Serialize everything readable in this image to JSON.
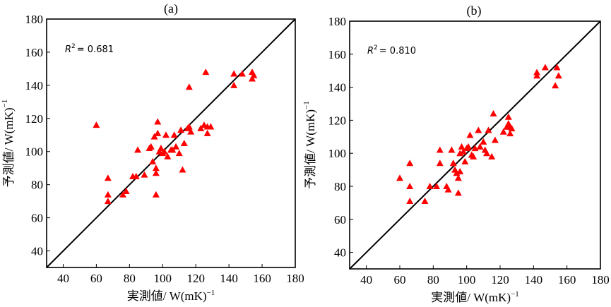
{
  "figure": {
    "y_title_prefix": "予測値/ W(mK)",
    "x_title_prefix": "実測値/ W(mK)",
    "unit_exponent": "−1"
  },
  "chart_data": [
    {
      "type": "scatter",
      "panel_label": "(a)",
      "xlabel": "実測値/ W(mK)−1",
      "ylabel": "予測値/ W(mK)−1",
      "xlim": [
        30,
        180
      ],
      "ylim": [
        30,
        180
      ],
      "xticks": [
        40,
        60,
        80,
        100,
        120,
        140,
        160,
        180
      ],
      "yticks": [
        40,
        60,
        80,
        100,
        120,
        140,
        160,
        180
      ],
      "reference_line": "y = x",
      "annotation": {
        "r2_label": "R",
        "r2_sup": "2",
        "r2_value": "= 0.681"
      },
      "marker": {
        "shape": "triangle",
        "color": "#ff0000"
      },
      "grid": false,
      "points": [
        [
          60,
          116
        ],
        [
          67,
          84
        ],
        [
          67,
          74
        ],
        [
          67,
          70
        ],
        [
          76,
          74
        ],
        [
          78,
          76
        ],
        [
          82,
          85
        ],
        [
          84,
          85
        ],
        [
          85,
          101
        ],
        [
          89,
          86
        ],
        [
          92,
          102
        ],
        [
          93,
          103
        ],
        [
          94,
          94
        ],
        [
          95,
          109
        ],
        [
          96,
          90
        ],
        [
          96,
          87
        ],
        [
          96,
          74
        ],
        [
          97,
          118
        ],
        [
          97,
          111
        ],
        [
          98,
          100
        ],
        [
          99,
          102
        ],
        [
          100,
          99
        ],
        [
          101,
          100
        ],
        [
          102,
          110
        ],
        [
          103,
          97
        ],
        [
          105,
          101
        ],
        [
          106,
          101
        ],
        [
          107,
          110
        ],
        [
          108,
          103
        ],
        [
          110,
          99
        ],
        [
          111,
          113
        ],
        [
          112,
          89
        ],
        [
          113,
          105
        ],
        [
          115,
          114
        ],
        [
          116,
          115
        ],
        [
          116,
          139
        ],
        [
          117,
          112
        ],
        [
          123,
          114
        ],
        [
          125,
          116
        ],
        [
          126,
          148
        ],
        [
          127,
          115
        ],
        [
          127,
          111
        ],
        [
          129,
          115
        ],
        [
          143,
          147
        ],
        [
          143,
          140
        ],
        [
          148,
          147
        ],
        [
          154,
          144
        ],
        [
          154,
          148
        ],
        [
          155,
          146
        ]
      ]
    },
    {
      "type": "scatter",
      "panel_label": "(b)",
      "xlabel": "実測値/ W(mK)−1",
      "ylabel": "予測値/ W(mK)−1",
      "xlim": [
        30,
        180
      ],
      "ylim": [
        30,
        180
      ],
      "xticks": [
        40,
        60,
        80,
        100,
        120,
        140,
        160,
        180
      ],
      "yticks": [
        40,
        60,
        80,
        100,
        120,
        140,
        160,
        180
      ],
      "reference_line": "y = x",
      "annotation": {
        "r2_label": "R",
        "r2_sup": "2",
        "r2_value": "= 0.810"
      },
      "marker": {
        "shape": "triangle",
        "color": "#ff0000"
      },
      "grid": false,
      "points": [
        [
          60,
          85
        ],
        [
          66,
          94
        ],
        [
          66,
          80
        ],
        [
          66,
          71
        ],
        [
          75,
          71
        ],
        [
          78,
          80
        ],
        [
          82,
          80
        ],
        [
          84,
          94
        ],
        [
          84,
          102
        ],
        [
          88,
          80
        ],
        [
          89,
          78
        ],
        [
          91,
          102
        ],
        [
          92,
          94
        ],
        [
          93,
          90
        ],
        [
          94,
          88
        ],
        [
          95,
          76
        ],
        [
          95,
          85
        ],
        [
          96,
          100
        ],
        [
          96,
          89
        ],
        [
          97,
          104
        ],
        [
          98,
          101
        ],
        [
          99,
          95
        ],
        [
          100,
          103
        ],
        [
          101,
          104
        ],
        [
          102,
          111
        ],
        [
          103,
          99
        ],
        [
          104,
          98
        ],
        [
          105,
          103
        ],
        [
          107,
          114
        ],
        [
          108,
          104
        ],
        [
          110,
          107
        ],
        [
          111,
          102
        ],
        [
          112,
          100
        ],
        [
          113,
          114
        ],
        [
          115,
          98
        ],
        [
          116,
          124
        ],
        [
          117,
          108
        ],
        [
          122,
          113
        ],
        [
          124,
          116
        ],
        [
          125,
          118
        ],
        [
          125,
          122
        ],
        [
          126,
          112
        ],
        [
          126,
          116
        ],
        [
          127,
          115
        ],
        [
          142,
          149
        ],
        [
          142,
          147
        ],
        [
          147,
          152
        ],
        [
          153,
          141
        ],
        [
          154,
          152
        ],
        [
          155,
          147
        ]
      ]
    }
  ]
}
